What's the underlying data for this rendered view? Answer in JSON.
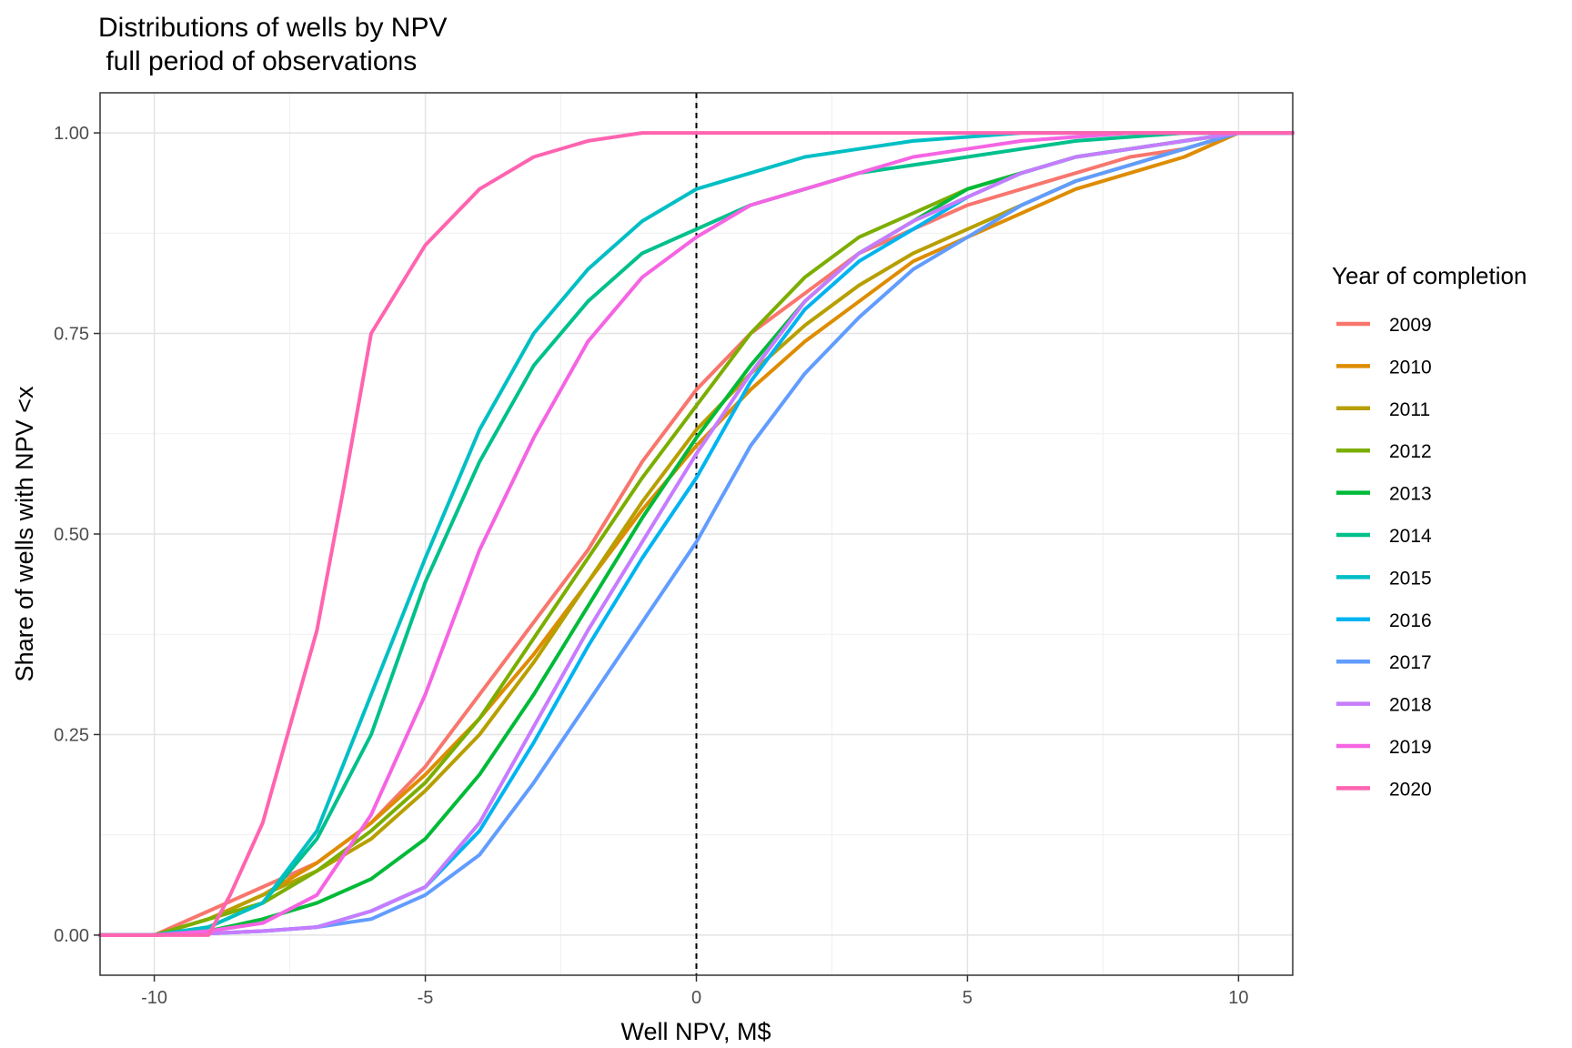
{
  "chart_data": {
    "type": "line",
    "title": "Distributions of wells by NPV",
    "subtitle": " full period of observations",
    "xlabel": "Well NPV, M$",
    "ylabel": "Share of wells with NPV <x",
    "xlim": [
      -11,
      11
    ],
    "ylim": [
      -0.05,
      1.05
    ],
    "x_ticks": [
      -10,
      -5,
      0,
      5,
      10
    ],
    "x_tick_labels": [
      "-10",
      "-5",
      "0",
      "5",
      "10"
    ],
    "y_ticks": [
      0,
      0.25,
      0.5,
      0.75,
      1
    ],
    "y_tick_labels": [
      "0.00",
      "0.25",
      "0.50",
      "0.75",
      "1.00"
    ],
    "grid": true,
    "reference_line": {
      "x": 0,
      "style": "dashed"
    },
    "legend": {
      "title": "Year of completion",
      "position": "right"
    },
    "series": [
      {
        "name": "2009",
        "color": "#F8766D",
        "x": [
          -11,
          -10,
          -9,
          -8,
          -7,
          -6,
          -5,
          -4,
          -3,
          -2,
          -1,
          0,
          1,
          2,
          3,
          4,
          5,
          6,
          7,
          8,
          9,
          10,
          11
        ],
        "y": [
          0,
          0,
          0.03,
          0.06,
          0.09,
          0.14,
          0.21,
          0.3,
          0.39,
          0.48,
          0.59,
          0.68,
          0.75,
          0.8,
          0.85,
          0.88,
          0.91,
          0.93,
          0.95,
          0.97,
          0.98,
          1,
          1
        ]
      },
      {
        "name": "2010",
        "color": "#DE8C00",
        "x": [
          -11,
          -10,
          -9,
          -8,
          -7,
          -6,
          -5,
          -4,
          -3,
          -2,
          -1,
          0,
          1,
          2,
          3,
          4,
          5,
          6,
          7,
          8,
          9,
          10,
          11
        ],
        "y": [
          0,
          0,
          0.02,
          0.05,
          0.09,
          0.14,
          0.2,
          0.27,
          0.35,
          0.44,
          0.53,
          0.61,
          0.68,
          0.74,
          0.79,
          0.84,
          0.87,
          0.9,
          0.93,
          0.95,
          0.97,
          1,
          1
        ]
      },
      {
        "name": "2011",
        "color": "#B79F00",
        "x": [
          -11,
          -10,
          -9,
          -8,
          -7,
          -6,
          -5,
          -4,
          -3,
          -2,
          -1,
          0,
          1,
          2,
          3,
          4,
          5,
          6,
          7,
          8,
          9,
          10,
          11
        ],
        "y": [
          0,
          0,
          0.02,
          0.05,
          0.08,
          0.12,
          0.18,
          0.25,
          0.34,
          0.44,
          0.54,
          0.63,
          0.7,
          0.76,
          0.81,
          0.85,
          0.88,
          0.91,
          0.94,
          0.96,
          0.98,
          1,
          1
        ]
      },
      {
        "name": "2012",
        "color": "#7CAE00",
        "x": [
          -11,
          -10,
          -9,
          -8,
          -7,
          -6,
          -5,
          -4,
          -3,
          -2,
          -1,
          0,
          1,
          2,
          3,
          4,
          5,
          6,
          7,
          8,
          9,
          10,
          11
        ],
        "y": [
          0,
          0,
          0.02,
          0.04,
          0.08,
          0.13,
          0.19,
          0.27,
          0.37,
          0.47,
          0.57,
          0.66,
          0.75,
          0.82,
          0.87,
          0.9,
          0.93,
          0.95,
          0.97,
          0.98,
          0.99,
          1,
          1
        ]
      },
      {
        "name": "2013",
        "color": "#00BA38",
        "x": [
          -11,
          -10,
          -9,
          -8,
          -7,
          -6,
          -5,
          -4,
          -3,
          -2,
          -1,
          0,
          1,
          2,
          3,
          4,
          5,
          6,
          7,
          8,
          9,
          10,
          11
        ],
        "y": [
          0,
          0,
          0.005,
          0.02,
          0.04,
          0.07,
          0.12,
          0.2,
          0.3,
          0.41,
          0.52,
          0.62,
          0.71,
          0.79,
          0.85,
          0.89,
          0.93,
          0.95,
          0.97,
          0.98,
          0.99,
          1,
          1
        ]
      },
      {
        "name": "2014",
        "color": "#00C08B",
        "x": [
          -11,
          -10,
          -9,
          -8,
          -7,
          -6,
          -5,
          -4,
          -3,
          -2,
          -1,
          0,
          1,
          2,
          3,
          4,
          5,
          6,
          7,
          8,
          9,
          10,
          11
        ],
        "y": [
          0,
          0,
          0.01,
          0.04,
          0.12,
          0.25,
          0.44,
          0.59,
          0.71,
          0.79,
          0.85,
          0.88,
          0.91,
          0.93,
          0.95,
          0.96,
          0.97,
          0.98,
          0.99,
          0.995,
          1,
          1,
          1
        ]
      },
      {
        "name": "2015",
        "color": "#00BFC4",
        "x": [
          -11,
          -10,
          -9,
          -8,
          -7,
          -6,
          -5,
          -4,
          -3,
          -2,
          -1,
          0,
          1,
          2,
          3,
          4,
          5,
          6,
          7,
          8,
          9,
          10,
          11
        ],
        "y": [
          0,
          0,
          0.01,
          0.04,
          0.13,
          0.3,
          0.47,
          0.63,
          0.75,
          0.83,
          0.89,
          0.93,
          0.95,
          0.97,
          0.98,
          0.99,
          0.995,
          1,
          1,
          1,
          1,
          1,
          1
        ]
      },
      {
        "name": "2016",
        "color": "#00B4F0",
        "x": [
          -11,
          -10,
          -9,
          -8,
          -7,
          -6,
          -5,
          -4,
          -3,
          -2,
          -1,
          0,
          1,
          2,
          3,
          4,
          5,
          6,
          7,
          8,
          9,
          10,
          11
        ],
        "y": [
          0,
          0,
          0.002,
          0.005,
          0.01,
          0.03,
          0.06,
          0.13,
          0.24,
          0.36,
          0.47,
          0.57,
          0.69,
          0.78,
          0.84,
          0.88,
          0.92,
          0.95,
          0.97,
          0.98,
          0.99,
          1,
          1
        ]
      },
      {
        "name": "2017",
        "color": "#619CFF",
        "x": [
          -11,
          -10,
          -9,
          -8,
          -7,
          -6,
          -5,
          -4,
          -3,
          -2,
          -1,
          0,
          1,
          2,
          3,
          4,
          5,
          6,
          7,
          8,
          9,
          10,
          11
        ],
        "y": [
          0,
          0,
          0.002,
          0.005,
          0.01,
          0.02,
          0.05,
          0.1,
          0.19,
          0.29,
          0.39,
          0.49,
          0.61,
          0.7,
          0.77,
          0.83,
          0.87,
          0.91,
          0.94,
          0.96,
          0.98,
          1,
          1
        ]
      },
      {
        "name": "2018",
        "color": "#C77CFF",
        "x": [
          -11,
          -10,
          -9,
          -8,
          -7,
          -6,
          -5,
          -4,
          -3,
          -2,
          -1,
          0,
          1,
          2,
          3,
          4,
          5,
          6,
          7,
          8,
          9,
          10,
          11
        ],
        "y": [
          0,
          0,
          0.002,
          0.005,
          0.01,
          0.03,
          0.06,
          0.14,
          0.26,
          0.38,
          0.49,
          0.6,
          0.7,
          0.79,
          0.85,
          0.89,
          0.92,
          0.95,
          0.97,
          0.98,
          0.99,
          1,
          1
        ]
      },
      {
        "name": "2019",
        "color": "#F564E3",
        "x": [
          -11,
          -10,
          -9,
          -8,
          -7,
          -6,
          -5,
          -4,
          -3,
          -2,
          -1,
          0,
          1,
          2,
          3,
          4,
          5,
          6,
          7,
          8,
          9,
          10,
          11
        ],
        "y": [
          0,
          0,
          0.005,
          0.015,
          0.05,
          0.15,
          0.3,
          0.48,
          0.62,
          0.74,
          0.82,
          0.87,
          0.91,
          0.93,
          0.95,
          0.97,
          0.98,
          0.99,
          0.995,
          1,
          1,
          1,
          1
        ]
      },
      {
        "name": "2020",
        "color": "#FF64B0",
        "x": [
          -11,
          -10,
          -9,
          -8.6,
          -8,
          -7,
          -6.5,
          -6,
          -5,
          -4,
          -3,
          -2,
          -1,
          0,
          1,
          5,
          10,
          11
        ],
        "y": [
          0,
          0,
          0,
          0.05,
          0.14,
          0.38,
          0.56,
          0.75,
          0.86,
          0.93,
          0.97,
          0.99,
          1,
          1,
          1,
          1,
          1,
          1
        ]
      }
    ]
  }
}
